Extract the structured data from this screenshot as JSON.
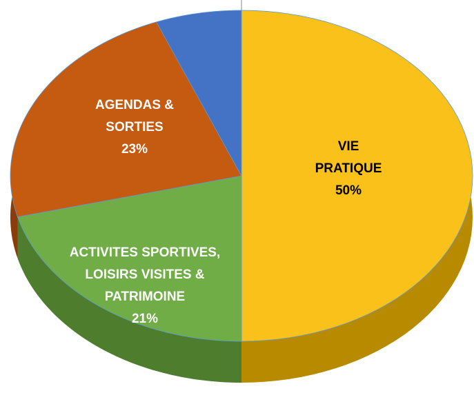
{
  "chart_data": {
    "type": "pie",
    "categories": [
      "VIE PRATIQUE",
      "ACTIVITES SPORTIVES, LOISIRS VISITES  & PATRIMOINE",
      "AGENDAS & SORTIES",
      null
    ],
    "values": [
      50,
      21,
      23,
      6
    ],
    "value_labels": [
      "50%",
      "21%",
      "23%",
      null
    ],
    "colors": [
      "#f9c11a",
      "#70ad47",
      "#c55a11",
      "#4472c4"
    ],
    "side_colors": [
      "#b88a00",
      "#4e7d2e",
      "#8a3d0a",
      "#2f5597"
    ]
  }
}
